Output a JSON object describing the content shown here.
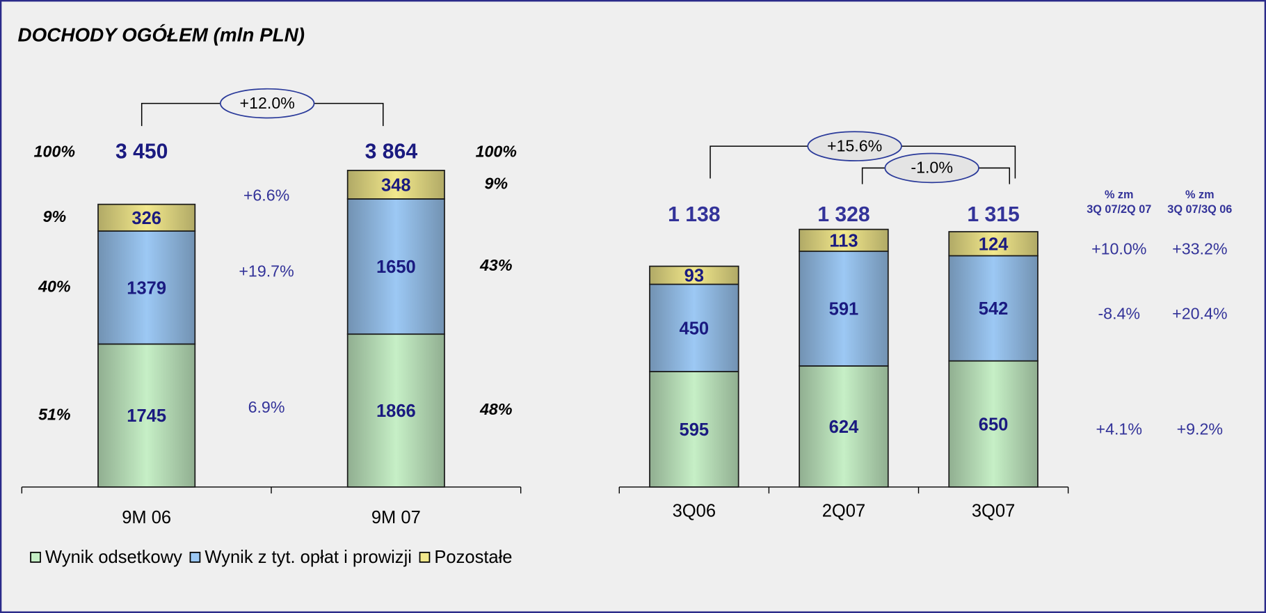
{
  "chart_data": [
    {
      "type": "stacked_bar",
      "title": "DOCHODY OGÓŁEM (mln PLN)",
      "categories": [
        "9M 06",
        "9M 07"
      ],
      "series": [
        {
          "name": "Wynik odsetkowy",
          "color": "#c6efc6",
          "values": [
            1745,
            1866
          ],
          "share_labels": [
            "51%",
            "48%"
          ],
          "changes": [
            "6.9%"
          ]
        },
        {
          "name": "Wynik z tyt. opłat i prowizji",
          "color": "#9cc8f4",
          "values": [
            1379,
            1650
          ],
          "share_labels": [
            "40%",
            "43%"
          ],
          "changes": [
            "+19.7%"
          ]
        },
        {
          "name": "Pozostałe",
          "color": "#f2e88c",
          "values": [
            326,
            348
          ],
          "share_labels": [
            "9%",
            "9%"
          ],
          "changes": [
            "+6.6%"
          ]
        }
      ],
      "totals": [
        3450,
        3864
      ],
      "total_labels": [
        "3 450",
        "3 864"
      ],
      "total_share_labels": [
        "100%",
        "100%"
      ],
      "brackets": [
        {
          "from": 0,
          "to": 1,
          "label": "+12.0%"
        }
      ]
    },
    {
      "type": "stacked_bar",
      "categories": [
        "3Q06",
        "2Q07",
        "3Q07"
      ],
      "series": [
        {
          "color": "#c6efc6",
          "values": [
            595,
            624,
            650
          ],
          "changes": [
            "+4.1%",
            "+9.2%"
          ]
        },
        {
          "color": "#9cc8f4",
          "values": [
            450,
            591,
            542
          ],
          "changes": [
            "-8.4%",
            "+20.4%"
          ]
        },
        {
          "color": "#f2e88c",
          "values": [
            93,
            113,
            124
          ],
          "changes": [
            "+10.0%",
            "+33.2%"
          ]
        }
      ],
      "totals": [
        1138,
        1328,
        1315
      ],
      "total_labels": [
        "1 138",
        "1 328",
        "1 315"
      ],
      "change_headers": [
        [
          "% zm",
          "3Q 07/2Q 07"
        ],
        [
          "% zm",
          "3Q 07/3Q 06"
        ]
      ],
      "brackets": [
        {
          "from": 0,
          "to": 2,
          "label": "+15.6%"
        },
        {
          "from": 1,
          "to": 2,
          "label": "-1.0%"
        }
      ]
    }
  ]
}
